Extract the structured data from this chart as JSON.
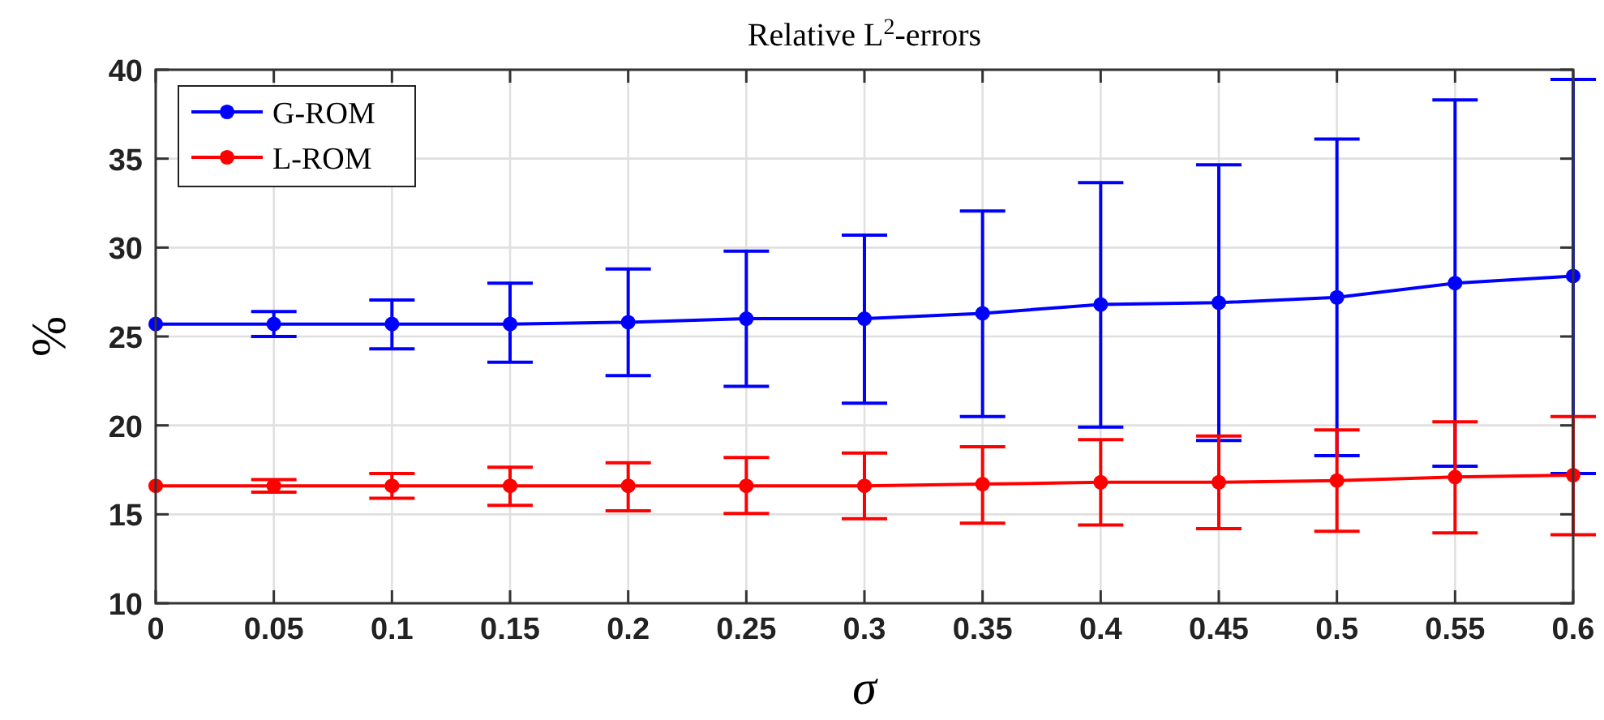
{
  "chart_data": {
    "type": "line",
    "title": "Relative L$^{2}$-errors",
    "xlabel": "σ",
    "ylabel": "%",
    "x": [
      0,
      0.05,
      0.1,
      0.15,
      0.2,
      0.25,
      0.3,
      0.35,
      0.4,
      0.45,
      0.5,
      0.55,
      0.6
    ],
    "xlim": [
      0,
      0.6
    ],
    "xticks": [
      0,
      0.05,
      0.1,
      0.15,
      0.2,
      0.25,
      0.3,
      0.35,
      0.4,
      0.45,
      0.5,
      0.55,
      0.6
    ],
    "ylim": [
      10,
      40
    ],
    "yticks": [
      10,
      15,
      20,
      25,
      30,
      35,
      40
    ],
    "grid": true,
    "legend": "top left",
    "marker": "circle",
    "line_style": "solid",
    "series": [
      {
        "name": "G-ROM",
        "color": "#0000ff",
        "values": [
          25.7,
          25.7,
          25.7,
          25.7,
          25.8,
          26.0,
          26.0,
          26.3,
          26.8,
          26.9,
          27.2,
          28.0,
          28.4
        ],
        "errors": [
          null,
          [
            25.0,
            26.4
          ],
          [
            24.3,
            27.05
          ],
          [
            23.55,
            28.0
          ],
          [
            22.8,
            28.8
          ],
          [
            22.2,
            29.8
          ],
          [
            21.25,
            30.7
          ],
          [
            20.5,
            32.05
          ],
          [
            19.9,
            33.65
          ],
          [
            19.15,
            34.65
          ],
          [
            18.3,
            36.1
          ],
          [
            17.7,
            38.3
          ],
          [
            17.3,
            39.45
          ]
        ]
      },
      {
        "name": "L-ROM",
        "color": "#ff0000",
        "values": [
          16.6,
          16.6,
          16.6,
          16.6,
          16.6,
          16.6,
          16.6,
          16.7,
          16.8,
          16.8,
          16.9,
          17.1,
          17.2
        ],
        "errors": [
          null,
          [
            16.25,
            16.95
          ],
          [
            15.9,
            17.3
          ],
          [
            15.5,
            17.65
          ],
          [
            15.2,
            17.9
          ],
          [
            15.05,
            18.2
          ],
          [
            14.75,
            18.45
          ],
          [
            14.5,
            18.8
          ],
          [
            14.4,
            19.2
          ],
          [
            14.2,
            19.4
          ],
          [
            14.05,
            19.75
          ],
          [
            13.95,
            20.2
          ],
          [
            13.85,
            20.5
          ]
        ]
      }
    ]
  }
}
